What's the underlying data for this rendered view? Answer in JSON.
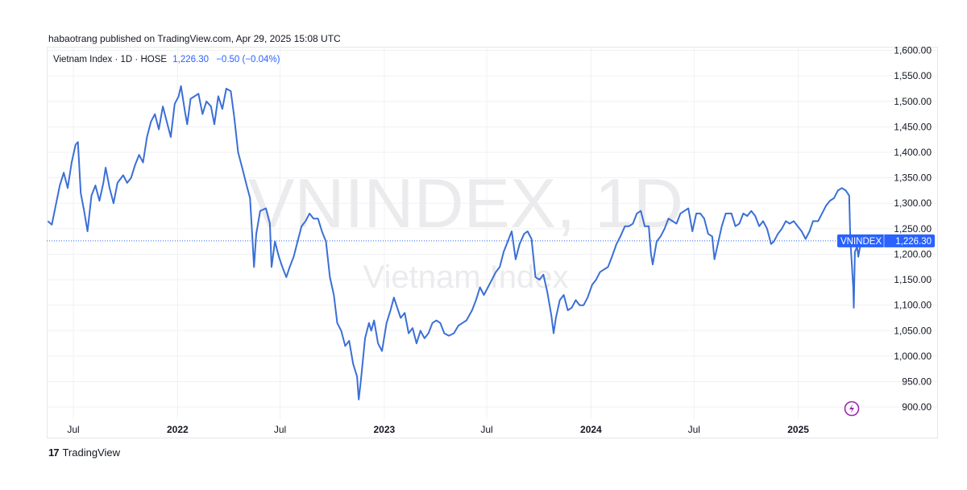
{
  "publisher": "habaotrang published on TradingView.com, Apr 29, 2025 15:08 UTC",
  "legend": {
    "symbol": "Vietnam Index · 1D · HOSE",
    "value": "1,226.30",
    "change": "−0.50 (−0.04%)"
  },
  "watermark": {
    "ticker": "VNINDEX, 1D",
    "name": "Vietnam Index"
  },
  "price_tag": {
    "label": "VNINDEX",
    "value": "1,226.30"
  },
  "footer": {
    "logo_mark": "17",
    "logo_text": "TradingView"
  },
  "colors": {
    "line": "#3b6fd6",
    "tag": "#2962ff",
    "accent_icon": "#9c27b0"
  },
  "icons": [
    "lightning-icon",
    "tradingview-logo-icon"
  ],
  "chart_data": {
    "type": "line",
    "title": "",
    "xlabel": "",
    "ylabel": "",
    "ylim": [
      876.5,
      1604
    ],
    "y_ticks": [
      "1,600.00",
      "1,550.00",
      "1,500.00",
      "1,450.00",
      "1,400.00",
      "1,350.00",
      "1,300.00",
      "1,250.00",
      "1,200.00",
      "1,150.00",
      "1,100.00",
      "1,050.00",
      "1,000.00",
      "950.00",
      "900.00"
    ],
    "y_tick_values": [
      1600,
      1550,
      1500,
      1450,
      1400,
      1350,
      1300,
      1250,
      1200,
      1150,
      1100,
      1050,
      1000,
      950,
      900
    ],
    "x_range": [
      "2021-05-15",
      "2025-05-31"
    ],
    "x_ticks": [
      {
        "label": "Jul",
        "date": "2021-07-01",
        "major": false
      },
      {
        "label": "2022",
        "date": "2022-01-01",
        "major": true
      },
      {
        "label": "Jul",
        "date": "2022-07-01",
        "major": false
      },
      {
        "label": "2023",
        "date": "2023-01-01",
        "major": true
      },
      {
        "label": "Jul",
        "date": "2023-07-01",
        "major": false
      },
      {
        "label": "2024",
        "date": "2024-01-01",
        "major": true
      },
      {
        "label": "Jul",
        "date": "2024-07-01",
        "major": false
      },
      {
        "label": "2025",
        "date": "2025-01-01",
        "major": true
      }
    ],
    "last_value": 1226.3,
    "series": [
      {
        "values": [
          [
            "2021-05-17",
            1265
          ],
          [
            "2021-05-24",
            1258
          ],
          [
            "2021-06-07",
            1335
          ],
          [
            "2021-06-14",
            1360
          ],
          [
            "2021-06-21",
            1330
          ],
          [
            "2021-06-28",
            1380
          ],
          [
            "2021-07-05",
            1415
          ],
          [
            "2021-07-09",
            1420
          ],
          [
            "2021-07-14",
            1320
          ],
          [
            "2021-07-20",
            1285
          ],
          [
            "2021-07-26",
            1245
          ],
          [
            "2021-08-02",
            1315
          ],
          [
            "2021-08-09",
            1335
          ],
          [
            "2021-08-16",
            1305
          ],
          [
            "2021-08-23",
            1340
          ],
          [
            "2021-08-27",
            1370
          ],
          [
            "2021-09-03",
            1330
          ],
          [
            "2021-09-10",
            1300
          ],
          [
            "2021-09-17",
            1340
          ],
          [
            "2021-09-27",
            1355
          ],
          [
            "2021-10-04",
            1340
          ],
          [
            "2021-10-11",
            1350
          ],
          [
            "2021-10-18",
            1375
          ],
          [
            "2021-10-25",
            1395
          ],
          [
            "2021-11-01",
            1380
          ],
          [
            "2021-11-08",
            1430
          ],
          [
            "2021-11-15",
            1460
          ],
          [
            "2021-11-22",
            1475
          ],
          [
            "2021-11-29",
            1445
          ],
          [
            "2021-12-06",
            1490
          ],
          [
            "2021-12-13",
            1460
          ],
          [
            "2021-12-20",
            1430
          ],
          [
            "2021-12-27",
            1495
          ],
          [
            "2022-01-03",
            1510
          ],
          [
            "2022-01-07",
            1530
          ],
          [
            "2022-01-14",
            1480
          ],
          [
            "2022-01-18",
            1455
          ],
          [
            "2022-01-24",
            1505
          ],
          [
            "2022-02-07",
            1515
          ],
          [
            "2022-02-14",
            1475
          ],
          [
            "2022-02-21",
            1500
          ],
          [
            "2022-03-01",
            1490
          ],
          [
            "2022-03-07",
            1455
          ],
          [
            "2022-03-14",
            1510
          ],
          [
            "2022-03-21",
            1485
          ],
          [
            "2022-03-28",
            1525
          ],
          [
            "2022-04-05",
            1520
          ],
          [
            "2022-04-11",
            1470
          ],
          [
            "2022-04-18",
            1400
          ],
          [
            "2022-04-25",
            1370
          ],
          [
            "2022-05-03",
            1335
          ],
          [
            "2022-05-09",
            1310
          ],
          [
            "2022-05-13",
            1235
          ],
          [
            "2022-05-16",
            1175
          ],
          [
            "2022-05-20",
            1240
          ],
          [
            "2022-05-27",
            1285
          ],
          [
            "2022-06-06",
            1290
          ],
          [
            "2022-06-13",
            1260
          ],
          [
            "2022-06-16",
            1175
          ],
          [
            "2022-06-22",
            1225
          ],
          [
            "2022-06-29",
            1195
          ],
          [
            "2022-07-05",
            1175
          ],
          [
            "2022-07-12",
            1155
          ],
          [
            "2022-07-18",
            1175
          ],
          [
            "2022-07-25",
            1195
          ],
          [
            "2022-08-01",
            1225
          ],
          [
            "2022-08-08",
            1255
          ],
          [
            "2022-08-15",
            1265
          ],
          [
            "2022-08-22",
            1280
          ],
          [
            "2022-08-29",
            1270
          ],
          [
            "2022-09-06",
            1270
          ],
          [
            "2022-09-13",
            1245
          ],
          [
            "2022-09-20",
            1225
          ],
          [
            "2022-09-27",
            1155
          ],
          [
            "2022-10-04",
            1120
          ],
          [
            "2022-10-10",
            1065
          ],
          [
            "2022-10-17",
            1050
          ],
          [
            "2022-10-24",
            1020
          ],
          [
            "2022-10-31",
            1030
          ],
          [
            "2022-11-07",
            985
          ],
          [
            "2022-11-14",
            960
          ],
          [
            "2022-11-17",
            915
          ],
          [
            "2022-11-21",
            955
          ],
          [
            "2022-11-28",
            1035
          ],
          [
            "2022-12-05",
            1065
          ],
          [
            "2022-12-09",
            1050
          ],
          [
            "2022-12-14",
            1070
          ],
          [
            "2022-12-21",
            1025
          ],
          [
            "2022-12-28",
            1010
          ],
          [
            "2023-01-05",
            1065
          ],
          [
            "2023-01-12",
            1090
          ],
          [
            "2023-01-18",
            1115
          ],
          [
            "2023-01-30",
            1075
          ],
          [
            "2023-02-06",
            1085
          ],
          [
            "2023-02-13",
            1045
          ],
          [
            "2023-02-20",
            1055
          ],
          [
            "2023-02-27",
            1025
          ],
          [
            "2023-03-06",
            1050
          ],
          [
            "2023-03-13",
            1035
          ],
          [
            "2023-03-20",
            1045
          ],
          [
            "2023-03-27",
            1065
          ],
          [
            "2023-04-03",
            1070
          ],
          [
            "2023-04-10",
            1065
          ],
          [
            "2023-04-17",
            1045
          ],
          [
            "2023-04-25",
            1040
          ],
          [
            "2023-05-04",
            1045
          ],
          [
            "2023-05-12",
            1060
          ],
          [
            "2023-05-19",
            1065
          ],
          [
            "2023-05-26",
            1070
          ],
          [
            "2023-06-05",
            1090
          ],
          [
            "2023-06-12",
            1110
          ],
          [
            "2023-06-19",
            1135
          ],
          [
            "2023-06-26",
            1120
          ],
          [
            "2023-07-03",
            1135
          ],
          [
            "2023-07-10",
            1150
          ],
          [
            "2023-07-17",
            1165
          ],
          [
            "2023-07-24",
            1175
          ],
          [
            "2023-07-31",
            1205
          ],
          [
            "2023-08-07",
            1225
          ],
          [
            "2023-08-14",
            1245
          ],
          [
            "2023-08-21",
            1190
          ],
          [
            "2023-08-28",
            1220
          ],
          [
            "2023-09-05",
            1240
          ],
          [
            "2023-09-11",
            1245
          ],
          [
            "2023-09-18",
            1230
          ],
          [
            "2023-09-25",
            1155
          ],
          [
            "2023-10-02",
            1150
          ],
          [
            "2023-10-09",
            1160
          ],
          [
            "2023-10-16",
            1125
          ],
          [
            "2023-10-23",
            1080
          ],
          [
            "2023-10-27",
            1045
          ],
          [
            "2023-10-31",
            1075
          ],
          [
            "2023-11-07",
            1110
          ],
          [
            "2023-11-14",
            1120
          ],
          [
            "2023-11-21",
            1090
          ],
          [
            "2023-11-28",
            1095
          ],
          [
            "2023-12-05",
            1110
          ],
          [
            "2023-12-12",
            1100
          ],
          [
            "2023-12-19",
            1100
          ],
          [
            "2023-12-26",
            1115
          ],
          [
            "2024-01-03",
            1140
          ],
          [
            "2024-01-10",
            1150
          ],
          [
            "2024-01-17",
            1165
          ],
          [
            "2024-01-24",
            1170
          ],
          [
            "2024-01-31",
            1175
          ],
          [
            "2024-02-07",
            1195
          ],
          [
            "2024-02-15",
            1220
          ],
          [
            "2024-02-22",
            1235
          ],
          [
            "2024-03-01",
            1255
          ],
          [
            "2024-03-08",
            1255
          ],
          [
            "2024-03-15",
            1260
          ],
          [
            "2024-03-22",
            1280
          ],
          [
            "2024-03-29",
            1285
          ],
          [
            "2024-04-05",
            1255
          ],
          [
            "2024-04-12",
            1255
          ],
          [
            "2024-04-16",
            1200
          ],
          [
            "2024-04-19",
            1180
          ],
          [
            "2024-04-26",
            1225
          ],
          [
            "2024-05-03",
            1235
          ],
          [
            "2024-05-10",
            1250
          ],
          [
            "2024-05-17",
            1270
          ],
          [
            "2024-05-24",
            1265
          ],
          [
            "2024-05-31",
            1260
          ],
          [
            "2024-06-07",
            1280
          ],
          [
            "2024-06-14",
            1285
          ],
          [
            "2024-06-21",
            1290
          ],
          [
            "2024-06-28",
            1245
          ],
          [
            "2024-07-05",
            1280
          ],
          [
            "2024-07-12",
            1280
          ],
          [
            "2024-07-19",
            1270
          ],
          [
            "2024-07-26",
            1240
          ],
          [
            "2024-08-02",
            1235
          ],
          [
            "2024-08-06",
            1190
          ],
          [
            "2024-08-12",
            1220
          ],
          [
            "2024-08-19",
            1255
          ],
          [
            "2024-08-26",
            1280
          ],
          [
            "2024-09-05",
            1280
          ],
          [
            "2024-09-12",
            1255
          ],
          [
            "2024-09-19",
            1260
          ],
          [
            "2024-09-26",
            1280
          ],
          [
            "2024-10-03",
            1275
          ],
          [
            "2024-10-10",
            1285
          ],
          [
            "2024-10-17",
            1275
          ],
          [
            "2024-10-24",
            1255
          ],
          [
            "2024-10-31",
            1265
          ],
          [
            "2024-11-07",
            1250
          ],
          [
            "2024-11-14",
            1220
          ],
          [
            "2024-11-19",
            1225
          ],
          [
            "2024-11-26",
            1240
          ],
          [
            "2024-12-03",
            1250
          ],
          [
            "2024-12-10",
            1265
          ],
          [
            "2024-12-17",
            1260
          ],
          [
            "2024-12-24",
            1265
          ],
          [
            "2024-12-31",
            1255
          ],
          [
            "2025-01-07",
            1245
          ],
          [
            "2025-01-14",
            1230
          ],
          [
            "2025-01-21",
            1245
          ],
          [
            "2025-01-27",
            1265
          ],
          [
            "2025-02-05",
            1265
          ],
          [
            "2025-02-12",
            1280
          ],
          [
            "2025-02-19",
            1295
          ],
          [
            "2025-02-26",
            1305
          ],
          [
            "2025-03-05",
            1310
          ],
          [
            "2025-03-12",
            1325
          ],
          [
            "2025-03-19",
            1330
          ],
          [
            "2025-03-26",
            1325
          ],
          [
            "2025-04-01",
            1315
          ],
          [
            "2025-04-03",
            1230
          ],
          [
            "2025-04-08",
            1135
          ],
          [
            "2025-04-09",
            1095
          ],
          [
            "2025-04-11",
            1205
          ],
          [
            "2025-04-15",
            1215
          ],
          [
            "2025-04-17",
            1195
          ],
          [
            "2025-04-21",
            1220
          ],
          [
            "2025-04-25",
            1215
          ],
          [
            "2025-04-29",
            1226.3
          ]
        ]
      }
    ]
  }
}
